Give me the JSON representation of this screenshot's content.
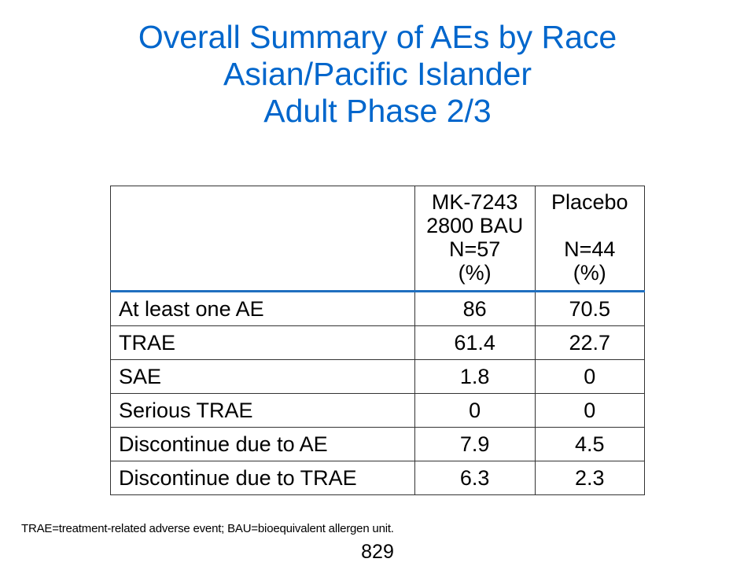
{
  "title": {
    "line1": "Overall Summary of AEs by Race",
    "line2": "Asian/Pacific Islander",
    "line3": "Adult Phase 2/3"
  },
  "table": {
    "header": {
      "corner": "",
      "col1": [
        "MK-7243",
        "2800 BAU",
        "N=57",
        "(%)"
      ],
      "col2": [
        "Placebo",
        "",
        "N=44",
        "(%)"
      ]
    },
    "rows": [
      {
        "label": "At least one AE",
        "mk7243": "86",
        "placebo": "70.5"
      },
      {
        "label": "TRAE",
        "mk7243": "61.4",
        "placebo": "22.7"
      },
      {
        "label": "SAE",
        "mk7243": "1.8",
        "placebo": "0"
      },
      {
        "label": "Serious TRAE",
        "mk7243": "0",
        "placebo": "0"
      },
      {
        "label": "Discontinue due to AE",
        "mk7243": "7.9",
        "placebo": "4.5"
      },
      {
        "label": "Discontinue due to TRAE",
        "mk7243": "6.3",
        "placebo": "2.3"
      }
    ]
  },
  "footnote": "TRAE=treatment-related adverse event; BAU=bioequivalent allergen unit.",
  "page_number": "829",
  "colors": {
    "title": "#0066cc",
    "header_rule": "#1f6fbf"
  }
}
